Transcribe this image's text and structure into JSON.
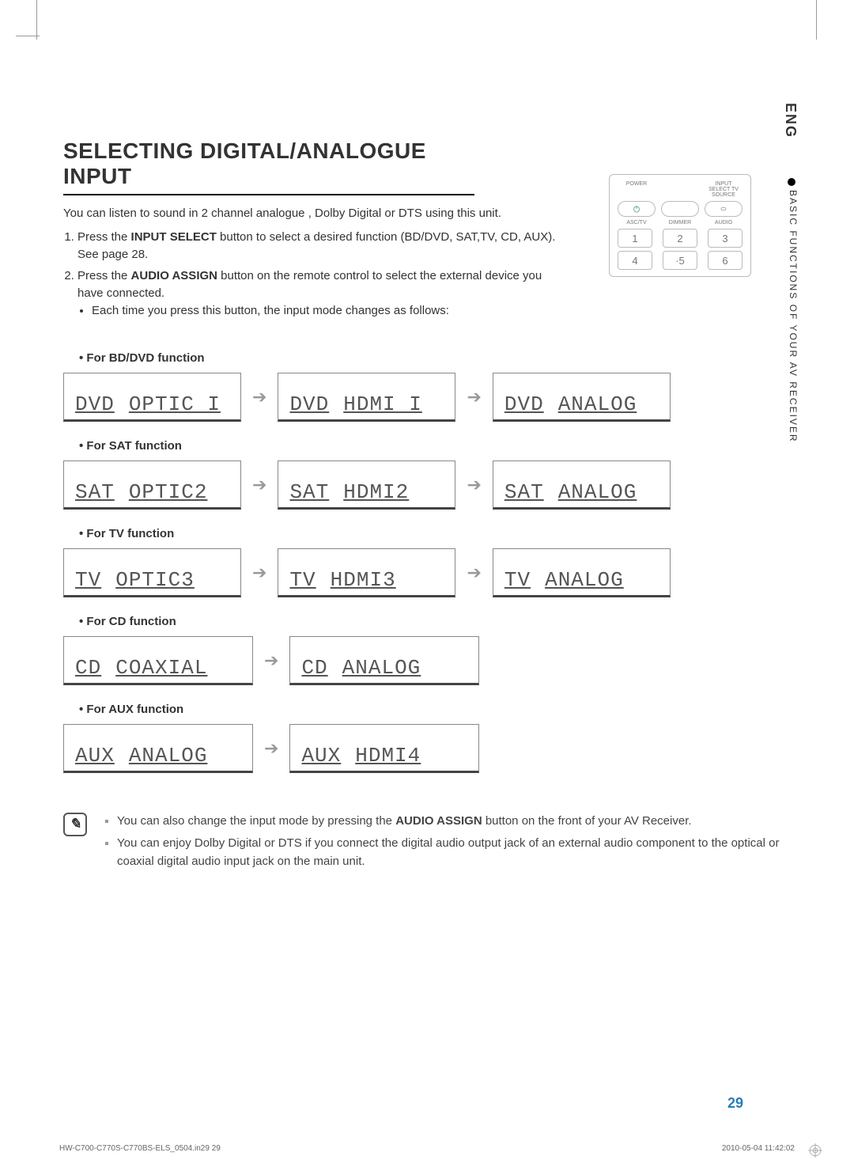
{
  "lang_tab": "ENG",
  "side_label": "BASIC FUNCTIONS OF YOUR AV RECEIVER",
  "heading": "SELECTING DIGITAL/ANALOGUE INPUT",
  "intro": "You can listen to sound in 2 channel analogue , Dolby Digital or DTS using this unit.",
  "step1_pre": "Press the ",
  "step1_bold": "INPUT SELECT",
  "step1_post": " button to select a desired function (BD/DVD, SAT,TV, CD, AUX). See page 28.",
  "step2_pre": "Press the ",
  "step2_bold": "AUDIO ASSIGN",
  "step2_post": " button on the remote control to select the external device you have connected.",
  "step2_sub": "Each time you press this button, the input mode changes as follows:",
  "remote": {
    "power": "POWER",
    "input": "INPUT SELECT TV SOURCE",
    "row2": [
      "ASC/TV",
      "DIMMER",
      "AUDIO"
    ],
    "nums1": [
      "1",
      "2",
      "3"
    ],
    "nums2": [
      "4",
      "·5",
      "6"
    ]
  },
  "sequences": [
    {
      "label": "For BD/DVD function",
      "items": [
        {
          "a": "DVD",
          "b": "OPTIC I"
        },
        {
          "a": "DVD",
          "b": "HDMI  I"
        },
        {
          "a": "DVD",
          "b": "ANALOG"
        }
      ]
    },
    {
      "label": "For SAT function",
      "items": [
        {
          "a": "SAT",
          "b": "OPTIC2"
        },
        {
          "a": "SAT",
          "b": "HDMI2"
        },
        {
          "a": "SAT",
          "b": "ANALOG"
        }
      ]
    },
    {
      "label": "For TV function",
      "items": [
        {
          "a": "TV",
          "b": "OPTIC3"
        },
        {
          "a": "TV",
          "b": "HDMI3"
        },
        {
          "a": "TV",
          "b": "ANALOG"
        }
      ]
    },
    {
      "label": "For CD function",
      "items": [
        {
          "a": "CD",
          "b": "COAXIAL"
        },
        {
          "a": "CD",
          "b": "ANALOG"
        }
      ]
    },
    {
      "label": "For AUX function",
      "items": [
        {
          "a": "AUX",
          "b": "ANALOG"
        },
        {
          "a": "AUX",
          "b": "HDMI4"
        }
      ]
    }
  ],
  "notes": [
    {
      "pre": "You can also change the input mode by pressing the ",
      "bold": "AUDIO ASSIGN",
      "post": " button on the front of your AV Receiver."
    },
    {
      "pre": "You can enjoy Dolby Digital or DTS if you connect the digital audio output jack of an external audio component to the optical or coaxial digital audio input jack on the main unit.",
      "bold": "",
      "post": ""
    }
  ],
  "page_number": "29",
  "footer_left": "HW-C700-C770S-C770BS-ELS_0504.in29   29",
  "footer_right": "2010-05-04   11:42:02",
  "widths": {
    "disp3": 225,
    "disp2": 240
  }
}
